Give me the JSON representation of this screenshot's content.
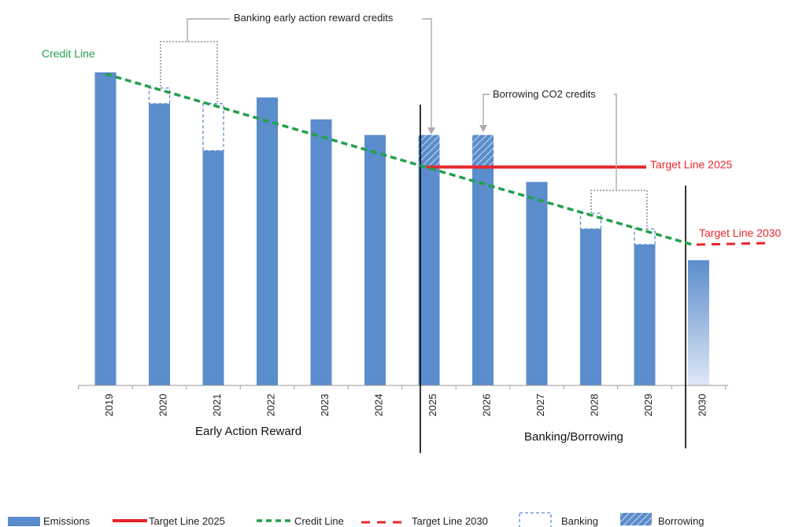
{
  "chart_data": {
    "type": "bar",
    "categories": [
      "2019",
      "2020",
      "2021",
      "2022",
      "2023",
      "2024",
      "2025",
      "2026",
      "2027",
      "2028",
      "2029",
      "2030"
    ],
    "series": [
      {
        "name": "Emissions",
        "values": [
          100,
          90,
          75,
          92,
          85,
          80,
          70,
          70,
          65,
          50,
          45,
          40
        ]
      }
    ],
    "banking": [
      {
        "category": "2020",
        "from": 90,
        "to": 95
      },
      {
        "category": "2021",
        "from": 75,
        "to": 90
      },
      {
        "category": "2028",
        "from": 50,
        "to": 55
      },
      {
        "category": "2029",
        "from": 45,
        "to": 50
      }
    ],
    "borrowing": [
      {
        "category": "2025",
        "from": 70,
        "to": 80
      },
      {
        "category": "2026",
        "from": 70,
        "to": 80
      }
    ],
    "credit_line": {
      "start": {
        "x": "2019",
        "y": 100
      },
      "end": {
        "x": "2030",
        "y": 45
      }
    },
    "target_2025": {
      "value": 70,
      "from": "2025",
      "to": "2029",
      "label": "Target Line 2025"
    },
    "target_2030": {
      "value": 45,
      "label": "Target Line 2030"
    },
    "credit_line_label": "Credit Line",
    "annotations": {
      "banking": "Banking early action reward credits",
      "borrowing": "Borrowing CO2 credits"
    },
    "sections": [
      "Early Action Reward",
      "Banking/Borrowing"
    ],
    "ylim": [
      0,
      100
    ],
    "grid": false,
    "legend": {
      "position": "bottom",
      "items": [
        "Emissions",
        "Target Line 2025",
        "Credit Line",
        "Target Line 2030",
        "Banking",
        "Borrowing"
      ]
    },
    "colors": {
      "bar": "#5b8ccb",
      "credit": "#22a04b",
      "target": "#e8262b",
      "bracket": "#aaaaaa",
      "divider": "#000000"
    }
  }
}
